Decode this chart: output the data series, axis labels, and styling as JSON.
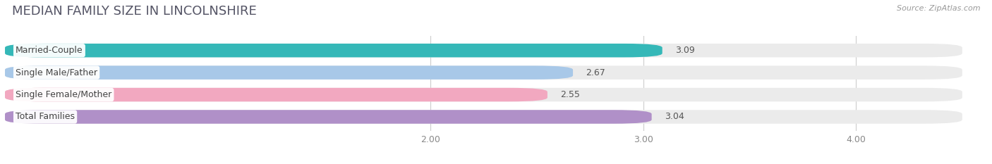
{
  "title": "MEDIAN FAMILY SIZE IN LINCOLNSHIRE",
  "source": "Source: ZipAtlas.com",
  "categories": [
    "Married-Couple",
    "Single Male/Father",
    "Single Female/Mother",
    "Total Families"
  ],
  "values": [
    3.09,
    2.67,
    2.55,
    3.04
  ],
  "bar_colors": [
    "#35b8b8",
    "#a8c8e8",
    "#f2a8c0",
    "#b090c8"
  ],
  "track_color": "#ebebeb",
  "background_color": "#ffffff",
  "xlim": [
    0.0,
    4.5
  ],
  "xdata_min": 0.0,
  "xdata_max": 4.5,
  "xticks": [
    2.0,
    3.0,
    4.0
  ],
  "xtick_labels": [
    "2.00",
    "3.00",
    "4.00"
  ],
  "bar_height": 0.62,
  "title_fontsize": 13,
  "label_fontsize": 9,
  "value_fontsize": 9,
  "tick_fontsize": 9,
  "title_color": "#555566",
  "source_color": "#999999",
  "value_color": "#555555",
  "label_color": "#444444"
}
